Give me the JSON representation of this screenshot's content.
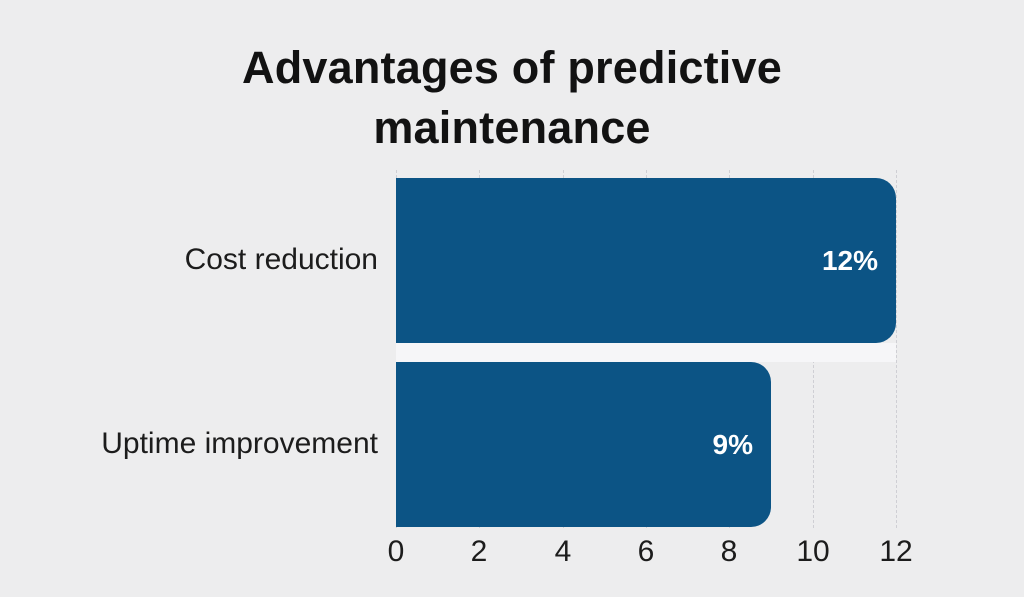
{
  "page": {
    "background": "#EDEDEE"
  },
  "chart_data": {
    "type": "bar",
    "orientation": "horizontal",
    "title": "Advantages of predictive maintenance",
    "categories": [
      "Cost reduction",
      "Uptime improvement"
    ],
    "values": [
      12,
      9
    ],
    "value_labels": [
      "12%",
      "9%"
    ],
    "xlabel": "",
    "ylabel": "",
    "xlim": [
      0,
      12
    ],
    "x_ticks": [
      0,
      2,
      4,
      6,
      8,
      10,
      12
    ],
    "grid": "vertical-dotted",
    "legend": "none",
    "colors": {
      "bar": "#0C5485",
      "background": "#EDEDEE",
      "grid_line": "#CFCFD4",
      "row_separator_band": "#F6F6F8",
      "title_text": "#121212",
      "axis_text": "#1C1C1C",
      "value_text": "#FFFFFF"
    }
  }
}
